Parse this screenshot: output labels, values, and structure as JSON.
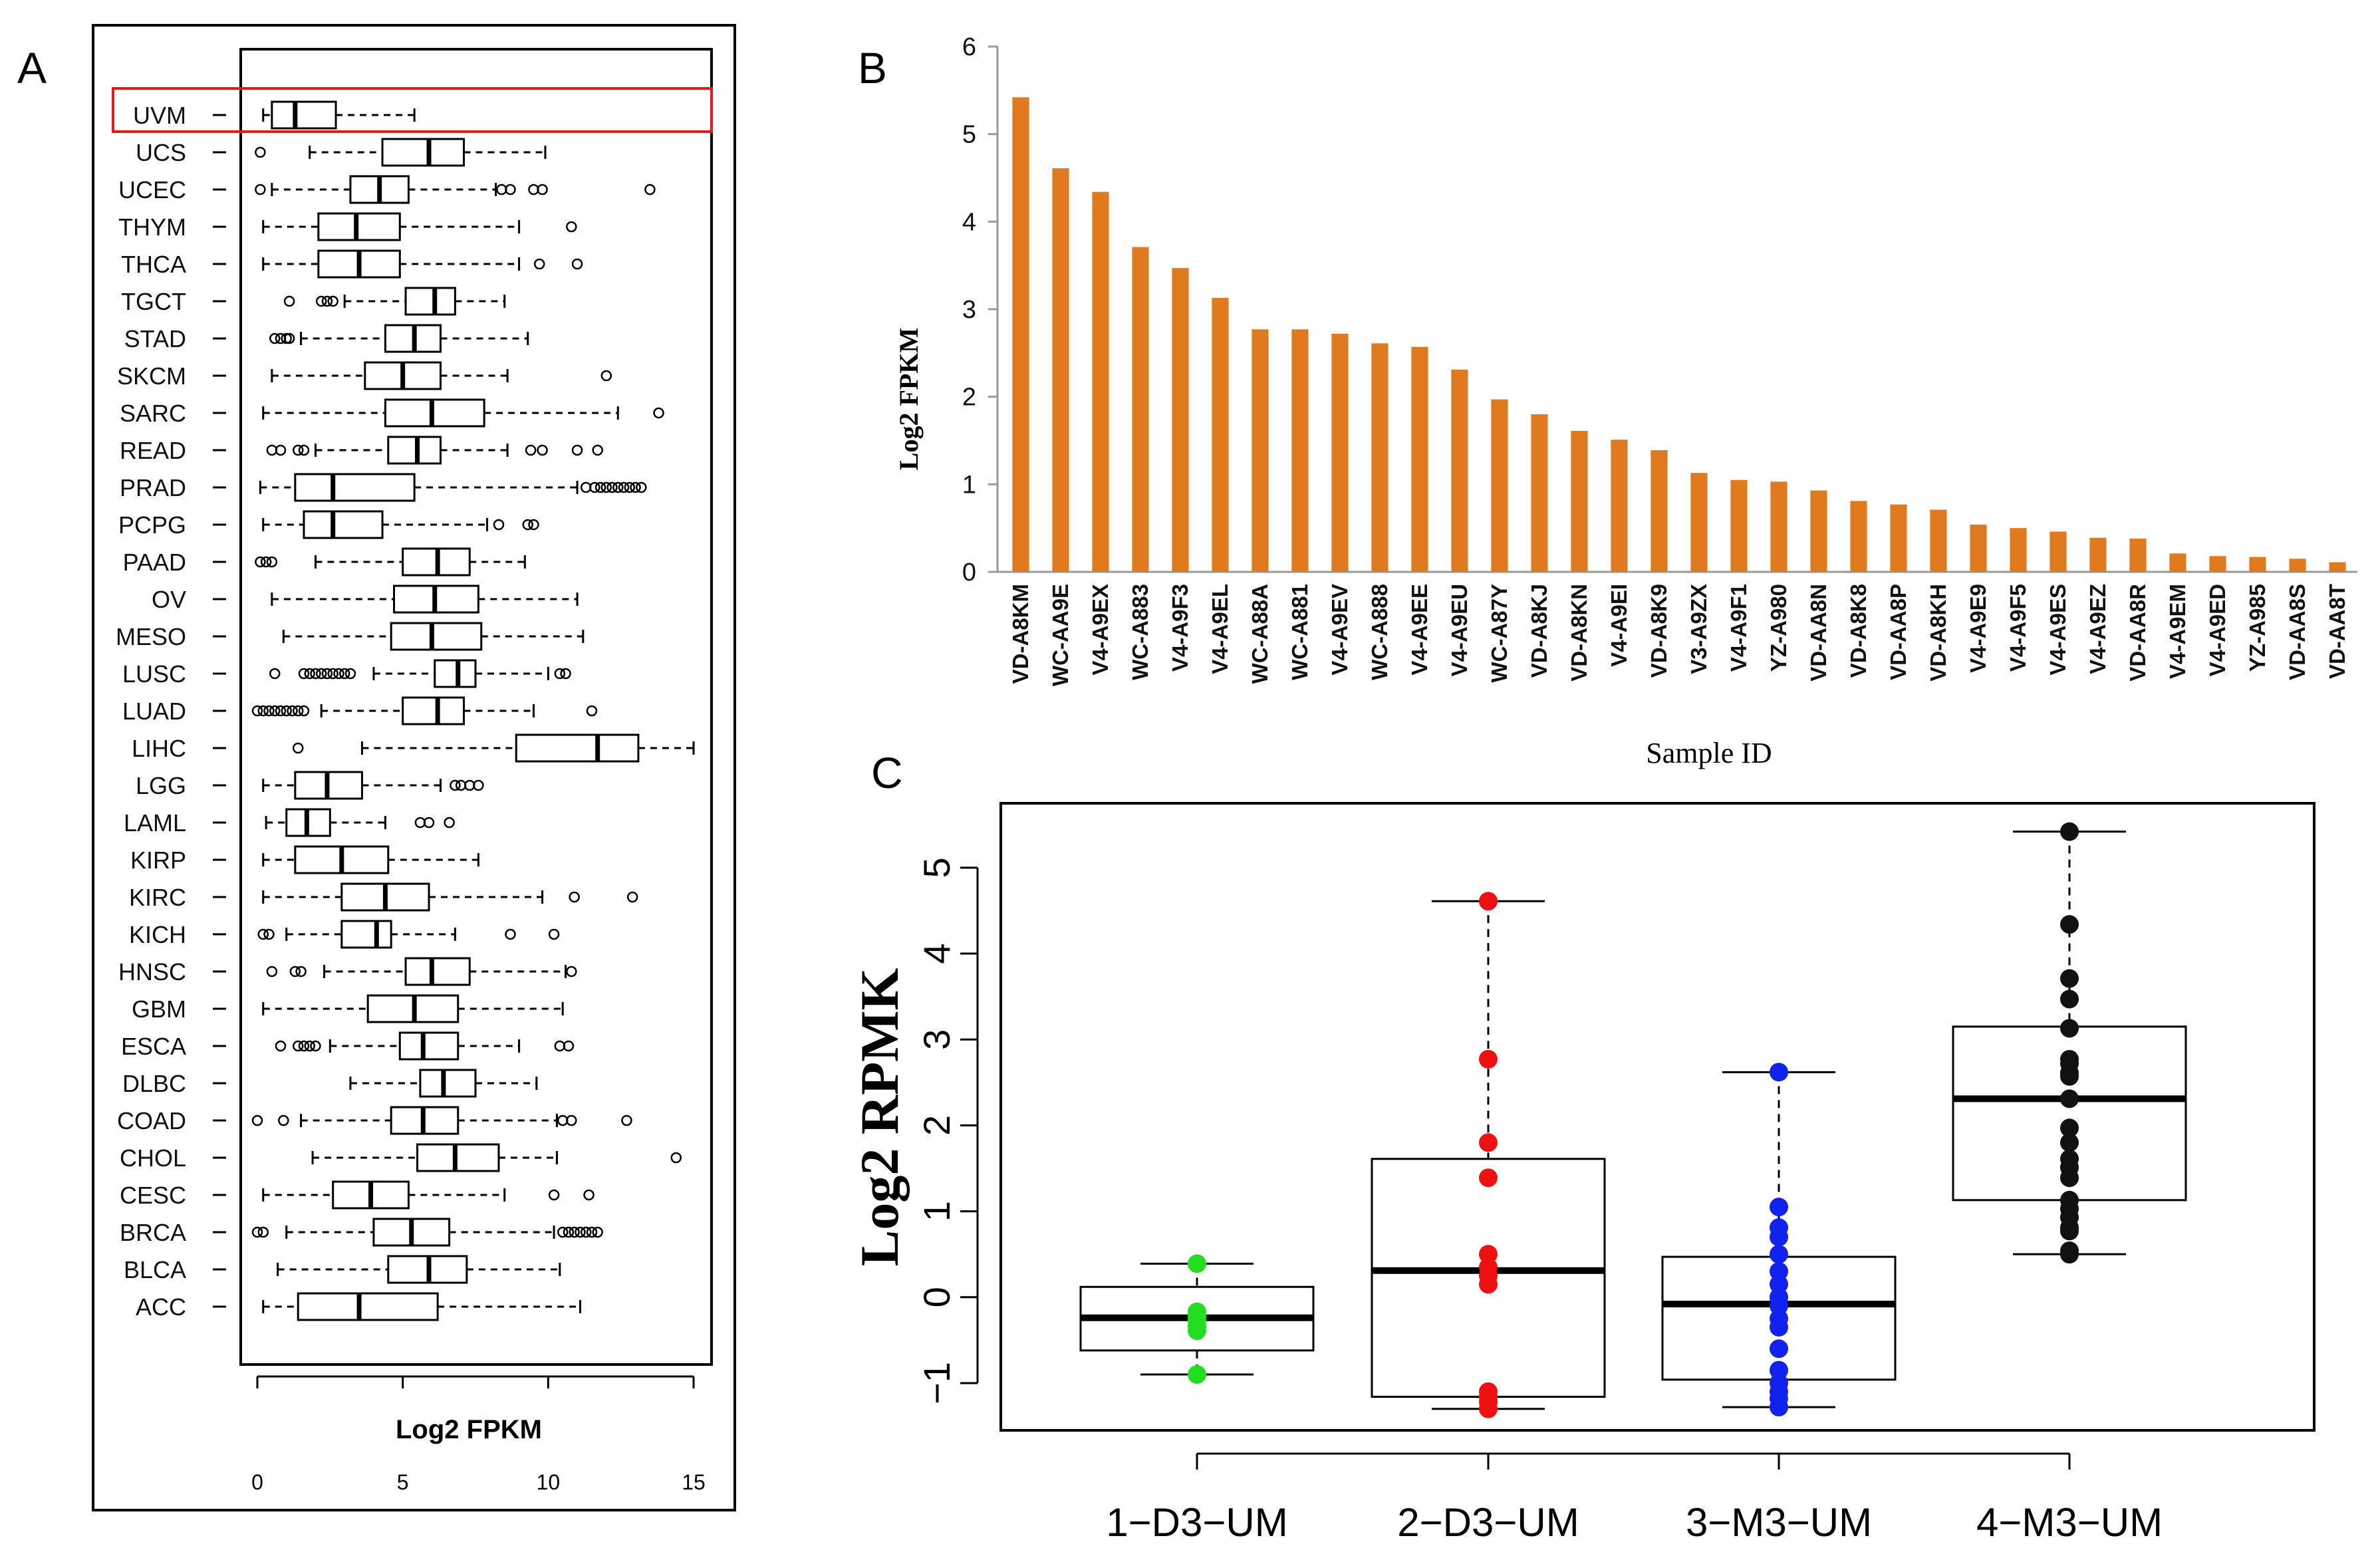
{
  "panels": {
    "a": "A",
    "b": "B",
    "c": "C"
  },
  "chart_data": [
    {
      "id": "A",
      "type": "boxplot-horizontal",
      "xlabel": "Log2 FPKM",
      "xticks": [
        0,
        5,
        10,
        15
      ],
      "xlim": [
        -0.3,
        15.3
      ],
      "highlight": "UVM",
      "colors": {
        "box": "#222222",
        "highlight": "#e8191e"
      },
      "groups": [
        {
          "name": "UVM",
          "min": 0.2,
          "q1": 0.5,
          "med": 1.3,
          "q3": 2.7,
          "max": 5.4,
          "out": []
        },
        {
          "name": "UCS",
          "min": 1.8,
          "q1": 4.3,
          "med": 5.9,
          "q3": 7.1,
          "max": 9.9,
          "out": [
            0.1
          ]
        },
        {
          "name": "UCEC",
          "min": 0.5,
          "q1": 3.2,
          "med": 4.2,
          "q3": 5.2,
          "max": 8.2,
          "out": [
            0.1,
            8.4,
            8.7,
            9.5,
            9.8,
            13.5
          ]
        },
        {
          "name": "THYM",
          "min": 0.2,
          "q1": 2.1,
          "med": 3.4,
          "q3": 4.9,
          "max": 9.0,
          "out": [
            10.8
          ]
        },
        {
          "name": "THCA",
          "min": 0.2,
          "q1": 2.1,
          "med": 3.5,
          "q3": 4.9,
          "max": 9.0,
          "out": [
            9.7,
            11.0
          ]
        },
        {
          "name": "TGCT",
          "min": 3.0,
          "q1": 5.1,
          "med": 6.1,
          "q3": 6.8,
          "max": 8.5,
          "out": [
            1.1,
            2.2,
            2.4,
            2.6
          ]
        },
        {
          "name": "STAD",
          "min": 1.5,
          "q1": 4.4,
          "med": 5.4,
          "q3": 6.3,
          "max": 9.3,
          "out": [
            0.6,
            0.8,
            1.0,
            1.1
          ]
        },
        {
          "name": "SKCM",
          "min": 0.5,
          "q1": 3.7,
          "med": 5.0,
          "q3": 6.3,
          "max": 8.6,
          "out": [
            12.0
          ]
        },
        {
          "name": "SARC",
          "min": 0.2,
          "q1": 4.4,
          "med": 6.0,
          "q3": 7.8,
          "max": 12.4,
          "out": [
            13.8
          ]
        },
        {
          "name": "READ",
          "min": 2.0,
          "q1": 4.5,
          "med": 5.5,
          "q3": 6.3,
          "max": 8.6,
          "out": [
            0.5,
            0.8,
            1.4,
            1.6,
            9.4,
            9.8,
            11.0,
            11.7
          ]
        },
        {
          "name": "PRAD",
          "min": 0.1,
          "q1": 1.3,
          "med": 2.6,
          "q3": 5.4,
          "max": 11.0,
          "out": [
            11.3,
            11.6,
            11.8,
            12.0,
            12.2,
            12.4,
            12.6,
            12.8,
            13.0,
            13.2
          ]
        },
        {
          "name": "PCPG",
          "min": 0.2,
          "q1": 1.6,
          "med": 2.6,
          "q3": 4.3,
          "max": 7.9,
          "out": [
            8.3,
            9.3,
            9.5
          ]
        },
        {
          "name": "PAAD",
          "min": 2.0,
          "q1": 5.0,
          "med": 6.2,
          "q3": 7.3,
          "max": 9.2,
          "out": [
            0.1,
            0.3,
            0.5
          ]
        },
        {
          "name": "OV",
          "min": 0.5,
          "q1": 4.7,
          "med": 6.1,
          "q3": 7.6,
          "max": 11.0,
          "out": []
        },
        {
          "name": "MESO",
          "min": 0.9,
          "q1": 4.6,
          "med": 6.0,
          "q3": 7.7,
          "max": 11.2,
          "out": []
        },
        {
          "name": "LUSC",
          "min": 4.0,
          "q1": 6.1,
          "med": 6.9,
          "q3": 7.5,
          "max": 10.0,
          "out": [
            0.6,
            1.6,
            1.8,
            2.0,
            2.2,
            2.4,
            2.6,
            2.8,
            3.0,
            3.2,
            10.4,
            10.6
          ]
        },
        {
          "name": "LUAD",
          "min": 2.2,
          "q1": 5.0,
          "med": 6.2,
          "q3": 7.1,
          "max": 9.5,
          "out": [
            0.0,
            0.2,
            0.4,
            0.6,
            0.8,
            1.0,
            1.2,
            1.4,
            1.6,
            11.5
          ]
        },
        {
          "name": "LIHC",
          "min": 3.6,
          "q1": 8.9,
          "med": 11.7,
          "q3": 13.1,
          "max": 15.0,
          "out": [
            1.4
          ]
        },
        {
          "name": "LGG",
          "min": 0.2,
          "q1": 1.3,
          "med": 2.4,
          "q3": 3.6,
          "max": 6.3,
          "out": [
            6.8,
            7.0,
            7.3,
            7.6
          ]
        },
        {
          "name": "LAML",
          "min": 0.3,
          "q1": 1.0,
          "med": 1.7,
          "q3": 2.5,
          "max": 4.4,
          "out": [
            5.6,
            5.9,
            6.6
          ]
        },
        {
          "name": "KIRP",
          "min": 0.2,
          "q1": 1.3,
          "med": 2.9,
          "q3": 4.5,
          "max": 7.6,
          "out": []
        },
        {
          "name": "KIRC",
          "min": 0.2,
          "q1": 2.9,
          "med": 4.4,
          "q3": 5.9,
          "max": 9.8,
          "out": [
            10.9,
            12.9
          ]
        },
        {
          "name": "KICH",
          "min": 1.0,
          "q1": 2.9,
          "med": 4.1,
          "q3": 4.6,
          "max": 6.8,
          "out": [
            0.2,
            0.4,
            8.7,
            10.2
          ]
        },
        {
          "name": "HNSC",
          "min": 2.3,
          "q1": 5.1,
          "med": 6.0,
          "q3": 7.3,
          "max": 10.6,
          "out": [
            0.5,
            1.3,
            1.5,
            10.8
          ]
        },
        {
          "name": "GBM",
          "min": 0.2,
          "q1": 3.8,
          "med": 5.4,
          "q3": 6.9,
          "max": 10.5,
          "out": []
        },
        {
          "name": "ESCA",
          "min": 2.5,
          "q1": 4.9,
          "med": 5.7,
          "q3": 6.9,
          "max": 9.0,
          "out": [
            0.8,
            1.4,
            1.6,
            1.8,
            2.0,
            10.4,
            10.7
          ]
        },
        {
          "name": "DLBC",
          "min": 3.2,
          "q1": 5.6,
          "med": 6.4,
          "q3": 7.5,
          "max": 9.6,
          "out": []
        },
        {
          "name": "COAD",
          "min": 1.5,
          "q1": 4.6,
          "med": 5.7,
          "q3": 6.9,
          "max": 10.3,
          "out": [
            0.0,
            0.9,
            10.5,
            10.8,
            12.7
          ]
        },
        {
          "name": "CHOL",
          "min": 1.9,
          "q1": 5.5,
          "med": 6.8,
          "q3": 8.3,
          "max": 10.3,
          "out": [
            14.4
          ]
        },
        {
          "name": "CESC",
          "min": 0.2,
          "q1": 2.6,
          "med": 3.9,
          "q3": 5.2,
          "max": 8.5,
          "out": [
            10.2,
            11.4
          ]
        },
        {
          "name": "BRCA",
          "min": 1.0,
          "q1": 4.0,
          "med": 5.3,
          "q3": 6.6,
          "max": 10.2,
          "out": [
            0.0,
            0.2,
            10.5,
            10.7,
            10.9,
            11.1,
            11.3,
            11.5,
            11.7
          ]
        },
        {
          "name": "BLCA",
          "min": 0.7,
          "q1": 4.5,
          "med": 5.9,
          "q3": 7.2,
          "max": 10.4,
          "out": []
        },
        {
          "name": "ACC",
          "min": 0.2,
          "q1": 1.4,
          "med": 3.5,
          "q3": 6.2,
          "max": 11.1,
          "out": []
        }
      ]
    },
    {
      "id": "B",
      "type": "bar",
      "ylabel": "Log2 FPKM",
      "xlabel": "Sample ID",
      "ylim": [
        0,
        6
      ],
      "yticks": [
        0,
        1,
        2,
        3,
        4,
        5,
        6
      ],
      "color": "#e07a1f",
      "categories": [
        "VD-A8KM",
        "WC-AA9E",
        "V4-A9EX",
        "WC-A883",
        "V4-A9F3",
        "V4-A9EL",
        "WC-A88A",
        "WC-A881",
        "V4-A9EV",
        "WC-A888",
        "V4-A9EE",
        "V4-A9EU",
        "WC-A87Y",
        "VD-A8KJ",
        "VD-A8KN",
        "V4-A9EI",
        "VD-A8K9",
        "V3-A9ZX",
        "V4-A9F1",
        "YZ-A980",
        "VD-AA8N",
        "VD-A8K8",
        "VD-AA8P",
        "VD-A8KH",
        "V4-A9E9",
        "V4-A9F5",
        "V4-A9ES",
        "V4-A9EZ",
        "VD-AA8R",
        "V4-A9EM",
        "V4-A9ED",
        "YZ-A985",
        "VD-AA8S",
        "VD-AA8T"
      ],
      "values": [
        5.42,
        4.61,
        4.34,
        3.71,
        3.47,
        3.13,
        2.77,
        2.77,
        2.72,
        2.61,
        2.57,
        2.31,
        1.97,
        1.8,
        1.61,
        1.51,
        1.39,
        1.13,
        1.05,
        1.03,
        0.93,
        0.81,
        0.77,
        0.71,
        0.54,
        0.5,
        0.46,
        0.39,
        0.38,
        0.21,
        0.18,
        0.17,
        0.15,
        0.11
      ]
    },
    {
      "id": "C",
      "type": "boxplot-with-points",
      "ylabel": "Log2 RPMK",
      "ylim": [
        -1.55,
        5.75
      ],
      "yticks": [
        -1,
        0,
        1,
        2,
        3,
        4,
        5
      ],
      "groups": [
        {
          "name": "1−D3−UM",
          "color": "#22dd22",
          "min": -0.9,
          "q1": -0.62,
          "med": -0.24,
          "q3": 0.12,
          "max": 0.39,
          "points": [
            0.39,
            -0.17,
            -0.22,
            -0.27,
            -0.34,
            -0.39,
            -0.9
          ]
        },
        {
          "name": "2−D3−UM",
          "color": "#ee1111",
          "min": -1.3,
          "q1": -1.16,
          "med": 0.31,
          "q3": 1.61,
          "max": 4.61,
          "points": [
            4.61,
            2.77,
            1.8,
            1.39,
            0.5,
            0.35,
            0.25,
            0.15,
            -1.1,
            -1.16,
            -1.22,
            -1.3
          ]
        },
        {
          "name": "3−M3−UM",
          "color": "#1122ee",
          "min": -1.28,
          "q1": -0.96,
          "med": -0.08,
          "q3": 0.47,
          "max": 2.62,
          "points": [
            2.62,
            1.05,
            0.81,
            0.7,
            0.5,
            0.3,
            0.15,
            0.0,
            -0.1,
            -0.25,
            -0.35,
            -0.6,
            -0.85,
            -1.0,
            -1.1,
            -1.18,
            -1.28
          ]
        },
        {
          "name": "4−M3−UM",
          "color": "#111111",
          "min": 0.5,
          "q1": 1.13,
          "med": 2.31,
          "q3": 3.15,
          "max": 5.42,
          "points": [
            5.42,
            4.34,
            3.71,
            3.47,
            3.13,
            2.77,
            2.72,
            2.61,
            2.57,
            2.31,
            1.97,
            1.8,
            1.61,
            1.51,
            1.39,
            1.13,
            1.03,
            0.93,
            0.81,
            0.77,
            0.54,
            0.5
          ]
        }
      ]
    }
  ]
}
